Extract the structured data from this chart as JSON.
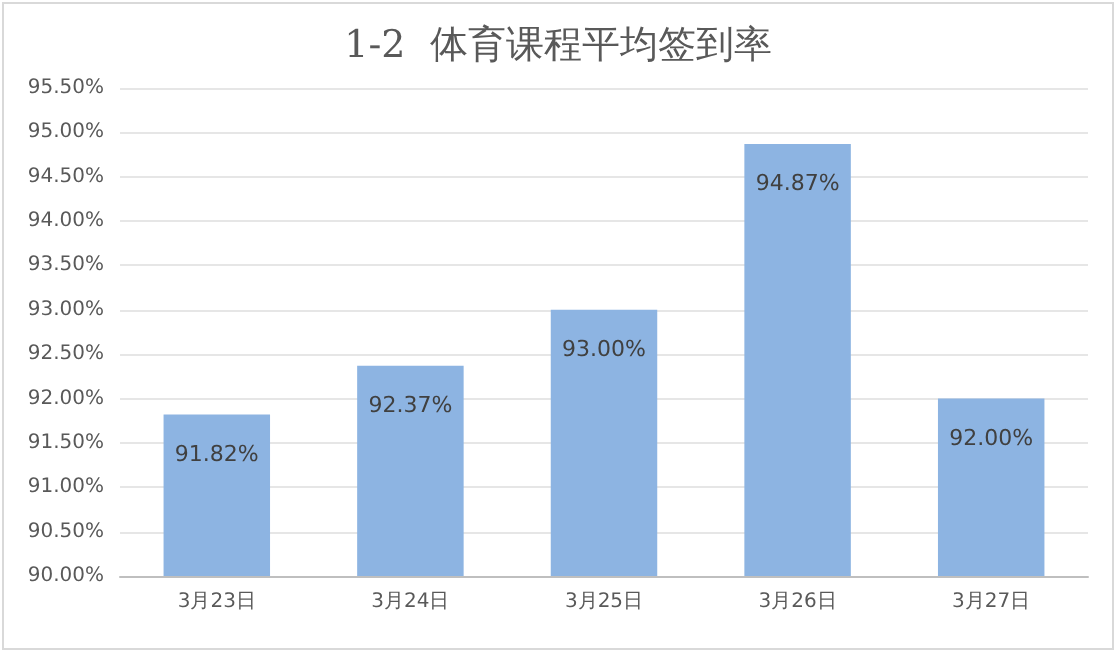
{
  "chart_data": {
    "type": "bar",
    "title": "1-2  体育课程平均签到率",
    "categories": [
      "3月23日",
      "3月24日",
      "3月25日",
      "3月26日",
      "3月27日"
    ],
    "values": [
      91.82,
      92.37,
      93.0,
      94.87,
      92.0
    ],
    "value_labels": [
      "91.82%",
      "92.37%",
      "93.00%",
      "94.87%",
      "92.00%"
    ],
    "color": "#8db4e2",
    "ylim": [
      90,
      95.5
    ],
    "yticks": [
      {
        "value": 90,
        "label": "90.00%"
      },
      {
        "value": 90.5,
        "label": "90.50%"
      },
      {
        "value": 91,
        "label": "91.00%"
      },
      {
        "value": 91.5,
        "label": "91.50%"
      },
      {
        "value": 92,
        "label": "92.00%"
      },
      {
        "value": 92.5,
        "label": "92.50%"
      },
      {
        "value": 93,
        "label": "93.00%"
      },
      {
        "value": 93.5,
        "label": "93.50%"
      },
      {
        "value": 94,
        "label": "94.00%"
      },
      {
        "value": 94.5,
        "label": "94.50%"
      },
      {
        "value": 95,
        "label": "95.00%"
      },
      {
        "value": 95.5,
        "label": "95.50%"
      }
    ],
    "grid": "y"
  }
}
